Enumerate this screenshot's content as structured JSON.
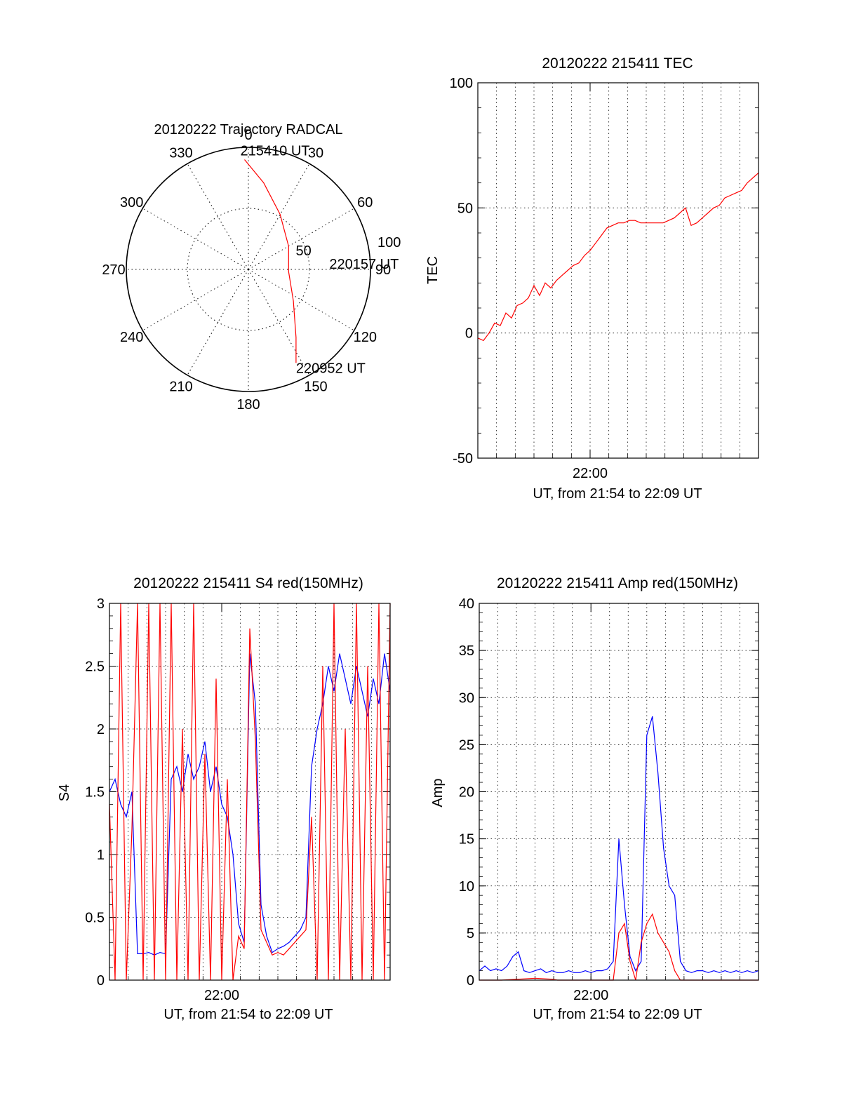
{
  "chart_data": [
    {
      "type": "polar",
      "title": "20120222 Trajectory RADCAL",
      "angle_labels": [
        "0",
        "30",
        "60",
        "90",
        "120",
        "150",
        "180",
        "210",
        "240",
        "270",
        "300",
        "330"
      ],
      "radial_labels": [
        "50",
        "100"
      ],
      "radial_range": [
        0,
        100
      ],
      "grid": "dotted",
      "trajectory": {
        "color": "#ff0000",
        "points": [
          {
            "az": 358,
            "r": 90
          },
          {
            "az": 10,
            "r": 72
          },
          {
            "az": 30,
            "r": 52
          },
          {
            "az": 60,
            "r": 38
          },
          {
            "az": 93,
            "r": 33
          },
          {
            "az": 125,
            "r": 45
          },
          {
            "az": 145,
            "r": 68
          },
          {
            "az": 153,
            "r": 86
          }
        ]
      },
      "annotations": [
        {
          "text": "215410 UT",
          "az": 358,
          "r": 90
        },
        {
          "text": "220157 UT",
          "az": 93,
          "r": 33
        },
        {
          "text": "220952 UT",
          "az": 153,
          "r": 86
        }
      ]
    },
    {
      "type": "line",
      "title": "20120222 215411 TEC",
      "ylabel": "TEC",
      "xlabel": "UT, from 21:54 to 22:09 UT",
      "xtick_label": "22:00",
      "xlim": [
        21.9,
        22.15
      ],
      "ylim": [
        -50,
        100
      ],
      "yticks": [
        -50,
        0,
        50,
        100
      ],
      "grid": true,
      "series": [
        {
          "color": "#ff0000",
          "x": [
            21.9,
            21.905,
            21.91,
            21.915,
            21.92,
            21.925,
            21.93,
            21.935,
            21.94,
            21.945,
            21.95,
            21.955,
            21.96,
            21.965,
            21.97,
            21.975,
            21.98,
            21.985,
            21.99,
            21.995,
            22.0,
            22.005,
            22.01,
            22.015,
            22.02,
            22.025,
            22.03,
            22.035,
            22.04,
            22.045,
            22.05,
            22.055,
            22.06,
            22.065,
            22.07,
            22.075,
            22.08,
            22.085,
            22.09,
            22.095,
            22.1,
            22.105,
            22.11,
            22.115,
            22.12,
            22.125,
            22.13,
            22.135,
            22.14,
            22.145,
            22.15
          ],
          "y": [
            -2,
            -3,
            0,
            4,
            3,
            8,
            6,
            11,
            12,
            14,
            19,
            15,
            20,
            18,
            21,
            23,
            25,
            27,
            28,
            31,
            33,
            36,
            39,
            42,
            43,
            44,
            44,
            45,
            45,
            44,
            44,
            44,
            44,
            44,
            45,
            46,
            48,
            50,
            43,
            44,
            46,
            48,
            50,
            51,
            54,
            55,
            56,
            57,
            60,
            62,
            64
          ]
        }
      ]
    },
    {
      "type": "line",
      "title": "20120222 215411 S4 red(150MHz)",
      "ylabel": "S4",
      "xlabel": "UT, from 21:54 to 22:09 UT",
      "xtick_label": "22:00",
      "xlim": [
        21.9,
        22.15
      ],
      "ylim": [
        0,
        3
      ],
      "yticks": [
        0,
        0.5,
        1,
        1.5,
        2,
        2.5,
        3
      ],
      "grid": true,
      "series": [
        {
          "color": "#0000ff",
          "x": [
            21.9,
            21.905,
            21.91,
            21.915,
            21.92,
            21.925,
            21.93,
            21.935,
            21.94,
            21.945,
            21.95,
            21.955,
            21.96,
            21.965,
            21.97,
            21.975,
            21.98,
            21.985,
            21.99,
            21.995,
            22.0,
            22.005,
            22.01,
            22.015,
            22.02,
            22.025,
            22.03,
            22.035,
            22.04,
            22.045,
            22.05,
            22.055,
            22.06,
            22.065,
            22.07,
            22.075,
            22.08,
            22.085,
            22.09,
            22.095,
            22.1,
            22.105,
            22.11,
            22.115,
            22.12,
            22.125,
            22.13,
            22.135,
            22.14,
            22.145,
            22.15
          ],
          "y": [
            1.5,
            1.6,
            1.4,
            1.3,
            1.5,
            0.21,
            0.21,
            0.22,
            0.2,
            0.22,
            0.21,
            1.6,
            1.7,
            1.5,
            1.8,
            1.6,
            1.7,
            1.9,
            1.5,
            1.7,
            1.4,
            1.3,
            1.0,
            0.45,
            0.3,
            2.6,
            2.2,
            0.6,
            0.35,
            0.22,
            0.25,
            0.27,
            0.3,
            0.35,
            0.4,
            0.5,
            1.7,
            2.0,
            2.2,
            2.5,
            2.3,
            2.6,
            2.4,
            2.2,
            2.5,
            2.3,
            2.1,
            2.4,
            2.2,
            2.6,
            2.3
          ]
        },
        {
          "color": "#ff0000",
          "x": [
            21.9,
            21.905,
            21.91,
            21.915,
            21.92,
            21.925,
            21.93,
            21.935,
            21.94,
            21.945,
            21.95,
            21.955,
            21.96,
            21.965,
            21.97,
            21.975,
            21.98,
            21.985,
            21.99,
            21.995,
            22.0,
            22.005,
            22.01,
            22.015,
            22.02,
            22.025,
            22.03,
            22.035,
            22.04,
            22.045,
            22.05,
            22.055,
            22.06,
            22.065,
            22.07,
            22.075,
            22.08,
            22.085,
            22.09,
            22.095,
            22.1,
            22.105,
            22.11,
            22.115,
            22.12,
            22.125,
            22.13,
            22.135,
            22.14,
            22.145,
            22.15
          ],
          "y": [
            1.4,
            0.0,
            3.0,
            0.0,
            1.2,
            3.0,
            0.0,
            3.0,
            0.0,
            3.0,
            0.0,
            3.0,
            0.0,
            2.0,
            0.0,
            3.0,
            0.0,
            1.8,
            0.0,
            2.4,
            0.0,
            1.6,
            0.0,
            0.35,
            0.25,
            2.8,
            1.9,
            0.4,
            0.3,
            0.2,
            0.22,
            0.2,
            0.25,
            0.3,
            0.35,
            0.4,
            1.3,
            0.0,
            2.5,
            0.0,
            3.0,
            0.0,
            2.0,
            0.0,
            3.0,
            0.0,
            2.5,
            0.0,
            3.0,
            0.0,
            3.0
          ]
        }
      ]
    },
    {
      "type": "line",
      "title": "20120222 215411 Amp red(150MHz)",
      "ylabel": "Amp",
      "xlabel": "UT, from 21:54 to 22:09 UT",
      "xtick_label": "22:00",
      "xlim": [
        21.9,
        22.15
      ],
      "ylim": [
        0,
        40
      ],
      "yticks": [
        0,
        5,
        10,
        15,
        20,
        25,
        30,
        35,
        40
      ],
      "grid": true,
      "series": [
        {
          "color": "#0000ff",
          "x": [
            21.9,
            21.905,
            21.91,
            21.915,
            21.92,
            21.925,
            21.93,
            21.935,
            21.94,
            21.945,
            21.95,
            21.955,
            21.96,
            21.965,
            21.97,
            21.975,
            21.98,
            21.985,
            21.99,
            21.995,
            22.0,
            22.005,
            22.01,
            22.015,
            22.02,
            22.025,
            22.03,
            22.035,
            22.04,
            22.045,
            22.05,
            22.055,
            22.06,
            22.065,
            22.07,
            22.075,
            22.08,
            22.085,
            22.09,
            22.095,
            22.1,
            22.105,
            22.11,
            22.115,
            22.12,
            22.125,
            22.13,
            22.135,
            22.14,
            22.145,
            22.15
          ],
          "y": [
            1,
            1.5,
            1,
            1.2,
            1,
            1.5,
            2.5,
            3,
            1,
            0.8,
            1,
            1.2,
            0.8,
            1,
            0.8,
            0.8,
            1,
            0.8,
            0.8,
            1,
            0.8,
            1,
            1,
            1.2,
            2,
            15,
            8,
            2.5,
            1,
            2,
            26,
            28,
            22,
            14,
            10,
            9,
            2,
            1,
            0.8,
            1,
            1,
            0.8,
            1,
            0.8,
            1,
            0.8,
            1,
            0.8,
            1,
            0.8,
            1
          ]
        },
        {
          "color": "#ff0000",
          "x": [
            21.9,
            21.92,
            21.935,
            21.95,
            21.965,
            21.97,
            21.98,
            22.0,
            22.015,
            22.02,
            22.025,
            22.03,
            22.035,
            22.04,
            22.045,
            22.05,
            22.055,
            22.06,
            22.065,
            22.07,
            22.075,
            22.08,
            22.1,
            22.15
          ],
          "y": [
            0,
            0,
            0.1,
            0.2,
            0.1,
            0,
            0,
            0,
            0,
            0,
            5,
            6,
            2,
            0,
            4,
            6,
            7,
            5,
            4,
            3,
            1,
            0,
            0,
            0
          ]
        }
      ]
    }
  ]
}
